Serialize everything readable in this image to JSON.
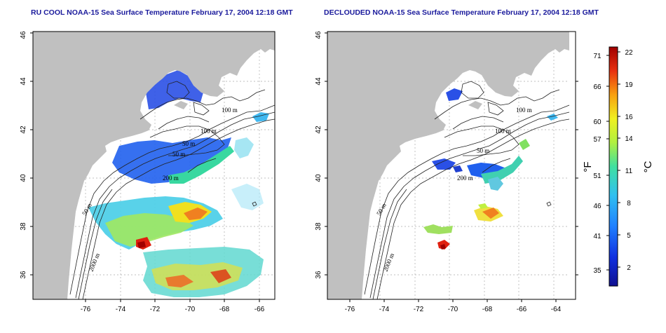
{
  "panels": [
    {
      "title": "RU COOL NOAA-15 Sea Surface Temperature February 17, 2004 12:18 GMT",
      "contour_labels": [
        "100 m",
        "100 m",
        "50 m",
        "50 m",
        "200 m",
        "50 m",
        "2000 m"
      ]
    },
    {
      "title": "DECLOUDED NOAA-15 Sea Surface Temperature February 17, 2004 12:18 GMT",
      "contour_labels": [
        "100 m",
        "100 m",
        "50 m",
        "200 m",
        "50 m",
        "2000 m"
      ]
    }
  ],
  "x_ticks": [
    "-76",
    "-74",
    "-72",
    "-70",
    "-68",
    "-66",
    "-64"
  ],
  "y_ticks": [
    "36",
    "38",
    "40",
    "42",
    "44",
    "46"
  ],
  "colorbar": {
    "f_label": "°F",
    "c_label": "°C",
    "f_ticks": [
      "71",
      "66",
      "60",
      "57",
      "51",
      "46",
      "41",
      "35"
    ],
    "c_ticks": [
      "22",
      "19",
      "16",
      "14",
      "11",
      "8",
      "5",
      "2"
    ]
  },
  "colors": {
    "land": "#c0c0c0",
    "title": "#1a1a9c",
    "grid": "#999999"
  }
}
